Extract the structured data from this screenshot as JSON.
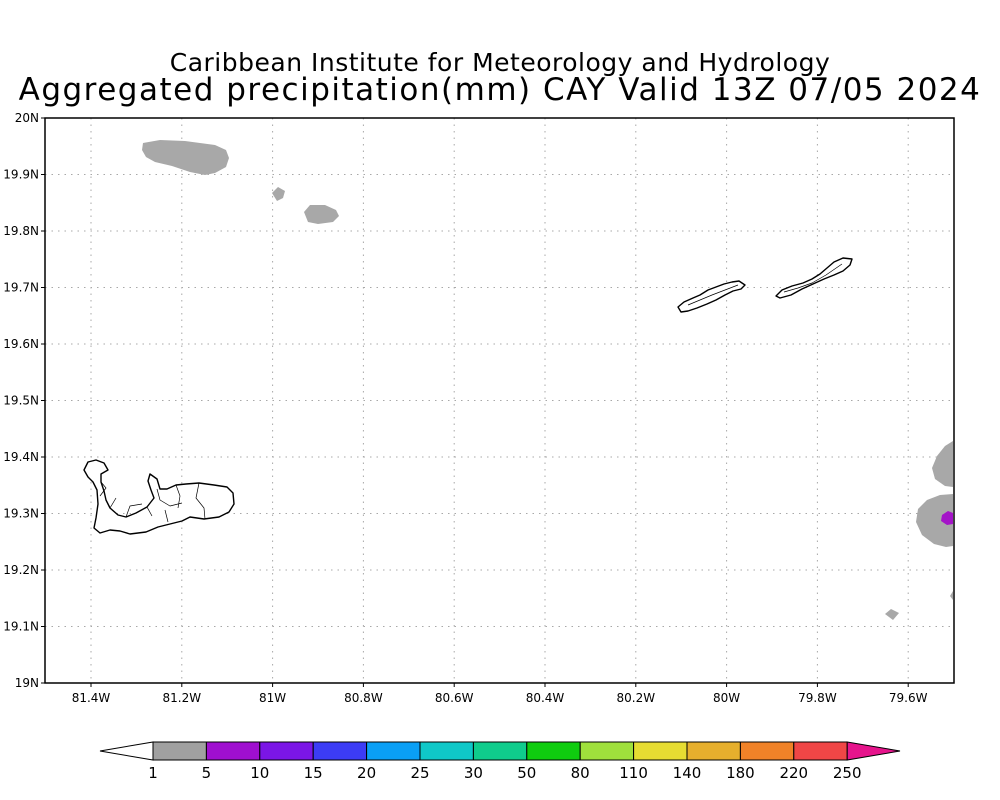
{
  "title": {
    "line1": "Caribbean Institute for Meteorology and Hydrology",
    "line2": "Aggregated precipitation(mm) CAY Valid 13Z 07/05 2024"
  },
  "map": {
    "lat_labels": [
      "20N",
      "19.9N",
      "19.8N",
      "19.7N",
      "19.6N",
      "19.5N",
      "19.4N",
      "19.3N",
      "19.2N",
      "19.1N",
      "19N"
    ],
    "lon_labels": [
      "81.4W",
      "81.2W",
      "81W",
      "80.8W",
      "80.6W",
      "80.4W",
      "80.2W",
      "80W",
      "79.8W",
      "79.6W"
    ],
    "islands": [
      "grand-cayman",
      "little-cayman",
      "cayman-brac"
    ],
    "precip_areas": [
      {
        "name": "north-west-cell",
        "class": "1-5"
      },
      {
        "name": "small-cell-a",
        "class": "1-5"
      },
      {
        "name": "small-cell-b",
        "class": "1-5"
      },
      {
        "name": "east-edge-cell-upper",
        "class": "1-5"
      },
      {
        "name": "east-edge-cell-lower",
        "class": "1-5"
      },
      {
        "name": "east-edge-core",
        "class": "5-10"
      },
      {
        "name": "south-east-speck",
        "class": "1-5"
      }
    ]
  },
  "colorbar": {
    "labels": [
      "1",
      "5",
      "10",
      "15",
      "20",
      "25",
      "30",
      "50",
      "80",
      "110",
      "140",
      "180",
      "220",
      "250"
    ],
    "colors": [
      "#ffffff",
      "#a0a0a0",
      "#9f0fcf",
      "#7b16e6",
      "#3c3cf5",
      "#0a9ff5",
      "#0fc8c8",
      "#0fcc8c",
      "#0fcc0f",
      "#9fe03c",
      "#e6dc32",
      "#e6af2d",
      "#f08228",
      "#f04646",
      "#e6148c"
    ]
  }
}
